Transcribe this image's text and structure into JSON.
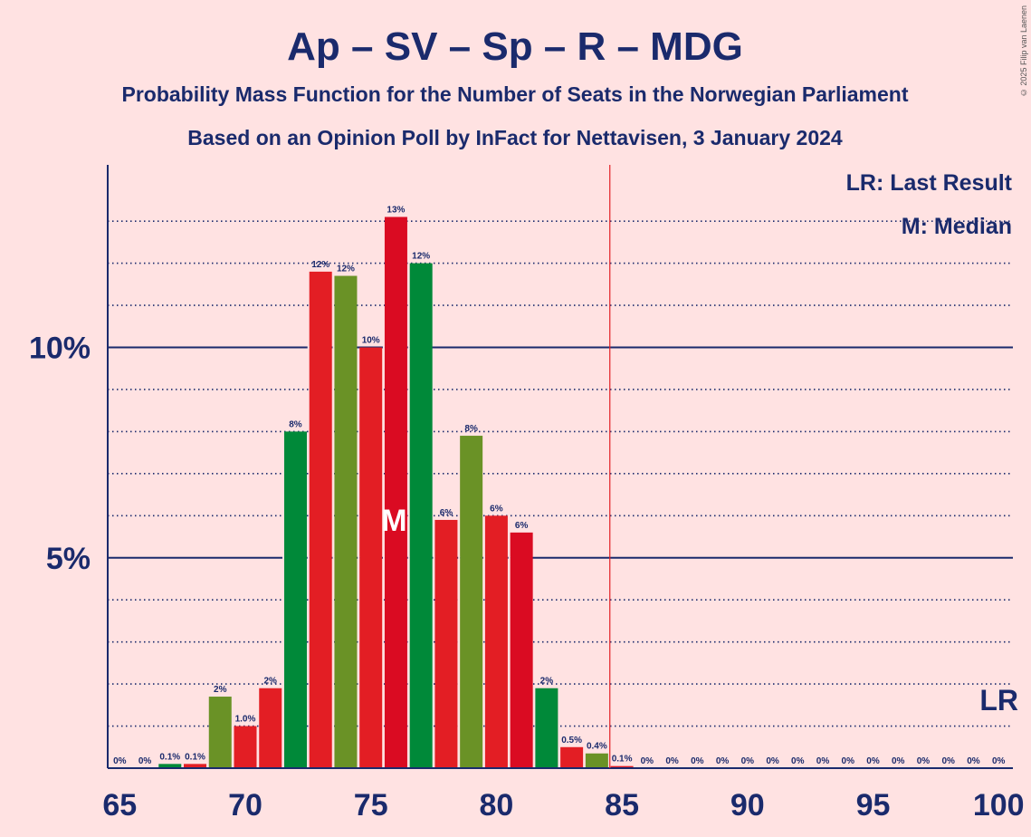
{
  "copyright": "© 2025 Filip van Laenen",
  "chart_data": {
    "type": "bar",
    "title": "Ap – SV – Sp – R – MDG",
    "subtitle": "Probability Mass Function for the Number of Seats in the Norwegian Parliament",
    "subtitle2": "Based on an Opinion Poll by InFact for Nettavisen, 3 January 2024",
    "xlim": [
      65,
      100
    ],
    "ylim": [
      0,
      14.3
    ],
    "x_ticks": [
      65,
      70,
      75,
      80,
      85,
      90,
      95,
      100
    ],
    "y_ticks": [
      {
        "value": 5,
        "label": "5%"
      },
      {
        "value": 10,
        "label": "10%"
      }
    ],
    "grid": "dotted lines every 1%, solid lines at 5% and 10%",
    "legend": {
      "lr": "LR: Last Result",
      "median": "M: Median",
      "placement": "top-right"
    },
    "last_result": {
      "seat": 85,
      "label": "LR"
    },
    "median": {
      "seat": 76,
      "label": "M"
    },
    "x": [
      65,
      66,
      67,
      68,
      69,
      70,
      71,
      72,
      73,
      74,
      75,
      76,
      77,
      78,
      79,
      80,
      81,
      82,
      83,
      84,
      85,
      86,
      87,
      88,
      89,
      90,
      91,
      92,
      93,
      94,
      95,
      96,
      97,
      98,
      99,
      100
    ],
    "values": [
      0,
      0,
      0.1,
      0.1,
      1.7,
      1.0,
      1.9,
      8.0,
      11.8,
      11.7,
      10.0,
      13.1,
      12.0,
      5.9,
      7.9,
      6.0,
      5.6,
      1.9,
      0.5,
      0.35,
      0.05,
      0,
      0,
      0,
      0,
      0,
      0,
      0,
      0,
      0,
      0,
      0,
      0,
      0,
      0,
      0
    ],
    "labels": [
      "0%",
      "0%",
      "0.1%",
      "0.1%",
      "2%",
      "1.0%",
      "2%",
      "8%",
      "12%",
      "12%",
      "10%",
      "13%",
      "12%",
      "6%",
      "8%",
      "6%",
      "6%",
      "2%",
      "0.5%",
      "0.4%",
      "0.1%",
      "0%",
      "0%",
      "0%",
      "0%",
      "0%",
      "0%",
      "0%",
      "0%",
      "0%",
      "0%",
      "0%",
      "0%",
      "0%",
      "0%",
      "0%"
    ],
    "colors": [
      "#E31E24",
      "#E31E24",
      "#008939",
      "#E31E24",
      "#6A9226",
      "#E31E24",
      "#E31E24",
      "#008939",
      "#E31E24",
      "#6A9226",
      "#E31E24",
      "#DA0B22",
      "#008939",
      "#E31E24",
      "#6A9226",
      "#E31E24",
      "#DA0B22",
      "#008939",
      "#E31E24",
      "#6A9226",
      "#E31E24",
      "#E31E24",
      "#E31E24",
      "#E31E24",
      "#E31E24",
      "#E31E24",
      "#E31E24",
      "#E31E24",
      "#E31E24",
      "#E31E24",
      "#E31E24",
      "#E31E24",
      "#E31E24",
      "#E31E24",
      "#E31E24",
      "#E31E24"
    ],
    "axis_color": "#1A2A6C",
    "lr_line_color": "#E31E24"
  }
}
